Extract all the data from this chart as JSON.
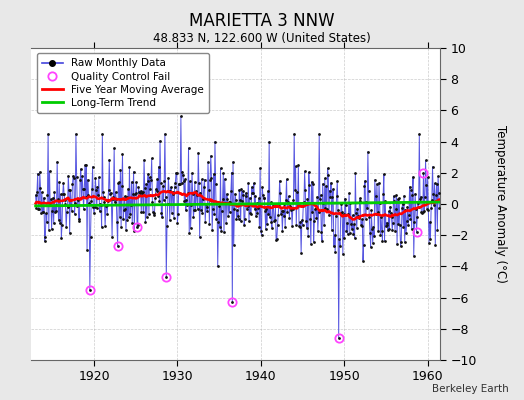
{
  "title": "MARIETTA 3 NNW",
  "subtitle": "48.833 N, 122.600 W (United States)",
  "ylabel": "Temperature Anomaly (°C)",
  "watermark": "Berkeley Earth",
  "xlim": [
    1912.5,
    1961.5
  ],
  "ylim": [
    -10,
    10
  ],
  "xticks": [
    1920,
    1930,
    1940,
    1950,
    1960
  ],
  "yticks": [
    -10,
    -8,
    -6,
    -4,
    -2,
    0,
    2,
    4,
    6,
    8,
    10
  ],
  "fig_bg_color": "#e8e8e8",
  "plot_bg_color": "#ffffff",
  "raw_line_color": "#4444dd",
  "raw_dot_color": "#111111",
  "ma_color": "#ff0000",
  "trend_color": "#00cc00",
  "qc_color": "#ff44ff",
  "seed": 42
}
